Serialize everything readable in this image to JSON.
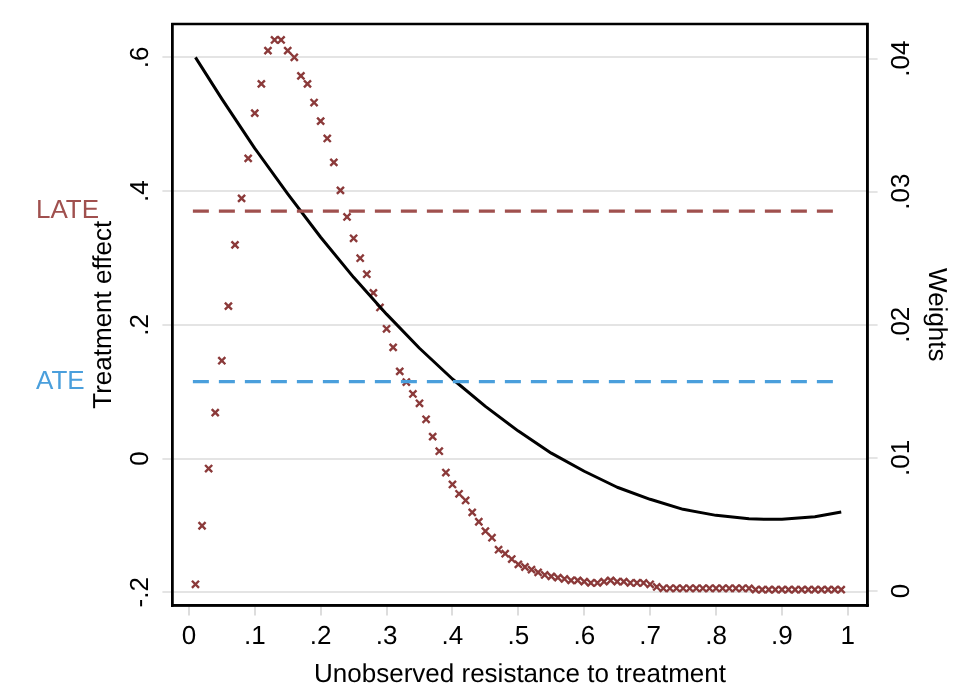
{
  "chart_data": {
    "type": "line",
    "xlabel": "Unobserved resistance to treatment",
    "ylabel": "Treatment effect",
    "y2label": "Weights",
    "xlim": [
      -0.025,
      1.03
    ],
    "xticks": [
      {
        "value": 0,
        "label": "0"
      },
      {
        "value": 0.1,
        "label": ".1"
      },
      {
        "value": 0.2,
        "label": ".2"
      },
      {
        "value": 0.3,
        "label": ".3"
      },
      {
        "value": 0.4,
        "label": ".4"
      },
      {
        "value": 0.5,
        "label": ".5"
      },
      {
        "value": 0.6,
        "label": ".6"
      },
      {
        "value": 0.7,
        "label": ".7"
      },
      {
        "value": 0.8,
        "label": ".8"
      },
      {
        "value": 0.9,
        "label": ".9"
      },
      {
        "value": 1,
        "label": "1"
      }
    ],
    "ylim": [
      -0.22,
      0.65
    ],
    "yticks": [
      {
        "value": -0.2,
        "label": "-.2"
      },
      {
        "value": 0,
        "label": "0"
      },
      {
        "value": 0.2,
        "label": ".2"
      },
      {
        "value": 0.4,
        "label": ".4"
      },
      {
        "value": 0.6,
        "label": ".6"
      }
    ],
    "y2lim": [
      -0.0011,
      0.0426
    ],
    "y2ticks": [
      {
        "value": 0,
        "label": "0"
      },
      {
        "value": 0.01,
        "label": ".01"
      },
      {
        "value": 0.02,
        "label": ".02"
      },
      {
        "value": 0.03,
        "label": ".03"
      },
      {
        "value": 0.04,
        "label": ".04"
      }
    ],
    "grid": "y",
    "legend": false,
    "series": [
      {
        "type": "line",
        "color": "#000000",
        "marker": "none",
        "line_style": "solid",
        "x": [
          0.01,
          0.05,
          0.1,
          0.15,
          0.2,
          0.25,
          0.3,
          0.35,
          0.4,
          0.45,
          0.5,
          0.55,
          0.6,
          0.65,
          0.7,
          0.75,
          0.8,
          0.85,
          0.88,
          0.9,
          0.95,
          0.99
        ],
        "values": [
          0.6,
          0.538,
          0.464,
          0.396,
          0.331,
          0.271,
          0.216,
          0.165,
          0.119,
          0.078,
          0.041,
          0.008,
          -0.019,
          -0.043,
          -0.061,
          -0.076,
          -0.085,
          -0.09,
          -0.091,
          -0.091,
          -0.087,
          -0.08
        ]
      },
      {
        "type": "scatter",
        "axis": "y2",
        "color": "#8b3a3a",
        "marker": "cross",
        "x": [
          0.01,
          0.02,
          0.03,
          0.04,
          0.05,
          0.06,
          0.07,
          0.08,
          0.09,
          0.1,
          0.11,
          0.12,
          0.13,
          0.14,
          0.15,
          0.16,
          0.17,
          0.18,
          0.19,
          0.2,
          0.21,
          0.22,
          0.23,
          0.24,
          0.25,
          0.26,
          0.27,
          0.28,
          0.29,
          0.3,
          0.31,
          0.32,
          0.33,
          0.34,
          0.35,
          0.36,
          0.37,
          0.38,
          0.39,
          0.4,
          0.41,
          0.42,
          0.43,
          0.44,
          0.45,
          0.46,
          0.47,
          0.48,
          0.49,
          0.5,
          0.51,
          0.52,
          0.53,
          0.54,
          0.55,
          0.56,
          0.57,
          0.58,
          0.59,
          0.6,
          0.61,
          0.62,
          0.63,
          0.64,
          0.65,
          0.66,
          0.67,
          0.68,
          0.69,
          0.7,
          0.71,
          0.72,
          0.73,
          0.74,
          0.75,
          0.76,
          0.77,
          0.78,
          0.79,
          0.8,
          0.81,
          0.82,
          0.83,
          0.84,
          0.85,
          0.86,
          0.87,
          0.88,
          0.89,
          0.9,
          0.91,
          0.92,
          0.93,
          0.94,
          0.95,
          0.96,
          0.97,
          0.98,
          0.99
        ],
        "values": [
          0.0005,
          0.0049,
          0.0092,
          0.0134,
          0.0173,
          0.0214,
          0.026,
          0.0295,
          0.0325,
          0.0359,
          0.0381,
          0.0406,
          0.0414,
          0.0414,
          0.0406,
          0.0401,
          0.0387,
          0.0381,
          0.0367,
          0.0353,
          0.034,
          0.0322,
          0.0301,
          0.0281,
          0.0265,
          0.025,
          0.0238,
          0.0224,
          0.0213,
          0.0197,
          0.0183,
          0.0165,
          0.0157,
          0.0148,
          0.0141,
          0.0129,
          0.0116,
          0.0105,
          0.0089,
          0.008,
          0.0073,
          0.0068,
          0.0059,
          0.0052,
          0.0045,
          0.004,
          0.0031,
          0.0028,
          0.0024,
          0.002,
          0.0018,
          0.0016,
          0.0014,
          0.0012,
          0.0011,
          0.001,
          0.0009,
          0.0008,
          0.0008,
          0.0007,
          0.0006,
          0.0006,
          0.0007,
          0.0008,
          0.0007,
          0.0007,
          0.0006,
          0.0006,
          0.0006,
          0.0005,
          0.0003,
          0.0002,
          0.0002,
          0.0002,
          0.0002,
          0.0002,
          0.0002,
          0.0002,
          0.0002,
          0.0002,
          0.0002,
          0.0002,
          0.0002,
          0.0002,
          0.0002,
          0.0001,
          0.0001,
          0.0001,
          0.0001,
          0.0001,
          0.0001,
          0.0001,
          0.0001,
          0.0001,
          0.0001,
          0.0001,
          0.0001,
          0.0001,
          0.0001
        ]
      }
    ],
    "ref_lines": [
      {
        "axis": "y",
        "value": 0.37,
        "label": "LATE",
        "color": "#a0504e",
        "line_style": "dashed"
      },
      {
        "axis": "y",
        "value": 0.115,
        "label": "ATE",
        "color": "#4a9fdc",
        "line_style": "dashed"
      }
    ]
  }
}
